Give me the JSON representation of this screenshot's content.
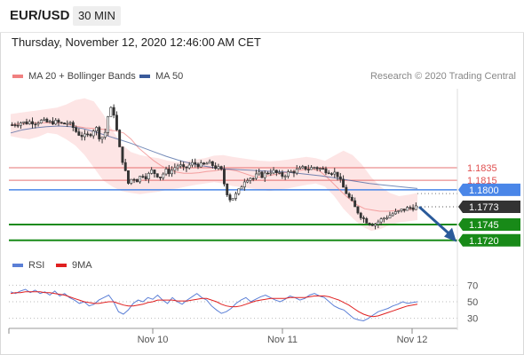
{
  "header": {
    "symbol": "EUR/USD",
    "timeframe": "30 MIN"
  },
  "datetime": "Thursday, November 12, 2020 12:46:00 AM CET",
  "legend": {
    "ma20": {
      "label": "MA 20 + Bollinger Bands",
      "color": "#f08080"
    },
    "ma50": {
      "label": "MA 50",
      "color": "#3a5a9a"
    }
  },
  "credit": "Research © 2020 Trading Central",
  "rsi_legend": {
    "rsi": {
      "label": "RSI",
      "color": "#5b7fd6"
    },
    "ma9": {
      "label": "9MA",
      "color": "#e02020"
    }
  },
  "chart_data": {
    "type": "candlestick",
    "x_ticks": [
      "Nov 10",
      "Nov 11",
      "Nov 12"
    ],
    "price_levels": [
      {
        "value": 1.1835,
        "label": "1.1835",
        "kind": "resistance",
        "color": "#e05050"
      },
      {
        "value": 1.1815,
        "label": "1.1815",
        "kind": "resistance",
        "color": "#e05050"
      },
      {
        "value": 1.18,
        "label": "1.1800",
        "kind": "pivot",
        "color": "#4a86e8"
      },
      {
        "value": 1.1773,
        "label": "1.1773",
        "kind": "last-price",
        "color": "#333333"
      },
      {
        "value": 1.1745,
        "label": "1.1745",
        "kind": "support",
        "color": "#188a18"
      },
      {
        "value": 1.172,
        "label": "1.1720",
        "kind": "support",
        "color": "#188a18"
      }
    ],
    "price_range": [
      1.17,
      1.196
    ],
    "close_path": [
      1.1903,
      1.1905,
      1.1907,
      1.1906,
      1.1908,
      1.1907,
      1.1909,
      1.1908,
      1.1906,
      1.1908,
      1.1906,
      1.1904,
      1.1906,
      1.19,
      1.189,
      1.1886,
      1.1884,
      1.189,
      1.19,
      1.188,
      1.189,
      1.193,
      1.192,
      1.187,
      1.184,
      1.181,
      1.182,
      1.1815,
      1.1825,
      1.182,
      1.183,
      1.1825,
      1.182,
      1.183,
      1.1828,
      1.1835,
      1.184,
      1.1832,
      1.1838,
      1.1842,
      1.184,
      1.1838,
      1.1842,
      1.184,
      1.1835,
      1.1832,
      1.18,
      1.1785,
      1.179,
      1.18,
      1.1815,
      1.182,
      1.1818,
      1.1825,
      1.1822,
      1.1828,
      1.183,
      1.1826,
      1.1822,
      1.1825,
      1.1828,
      1.183,
      1.1832,
      1.1835,
      1.1833,
      1.1836,
      1.1834,
      1.1832,
      1.183,
      1.1828,
      1.1825,
      1.1808,
      1.1795,
      1.1782,
      1.177,
      1.176,
      1.1752,
      1.1748,
      1.1745,
      1.175,
      1.1755,
      1.1758,
      1.1762,
      1.1764,
      1.1768,
      1.177,
      1.1772,
      1.1773
    ],
    "ma20_path": [
      1.1903,
      1.1904,
      1.1905,
      1.1906,
      1.1906,
      1.1906,
      1.1906,
      1.1905,
      1.1903,
      1.19,
      1.1898,
      1.1897,
      1.1896,
      1.1895,
      1.1893,
      1.189,
      1.188,
      1.1866,
      1.1856,
      1.1846,
      1.1838,
      1.1832,
      1.1828,
      1.1826,
      1.1826,
      1.1827,
      1.1829,
      1.183,
      1.1832,
      1.1832,
      1.183,
      1.1826,
      1.1822,
      1.182,
      1.1822,
      1.1824,
      1.1826,
      1.1828,
      1.183,
      1.1832,
      1.1833,
      1.183,
      1.182,
      1.1808,
      1.1796,
      1.1785,
      1.1776,
      1.177,
      1.1768,
      1.1766,
      1.1766,
      1.1767,
      1.1768,
      1.1769,
      1.177
    ],
    "ma50_path": [
      1.189,
      1.1895,
      1.1898,
      1.19,
      1.1901,
      1.19,
      1.1897,
      1.1892,
      1.1886,
      1.188,
      1.1874,
      1.1867,
      1.186,
      1.1853,
      1.1847,
      1.1842,
      1.1838,
      1.1835,
      1.1833,
      1.1832,
      1.1831,
      1.183,
      1.1829,
      1.1828,
      1.1826,
      1.1824,
      1.1822,
      1.1819,
      1.1816,
      1.1813,
      1.181,
      1.1808,
      1.1806,
      1.1804,
      1.1802
    ],
    "bb_upper": [
      1.192,
      1.1922,
      1.1924,
      1.1926,
      1.1928,
      1.193,
      1.1935,
      1.1942,
      1.1945,
      1.194,
      1.192,
      1.1895,
      1.1872,
      1.186,
      1.1855,
      1.1852,
      1.185,
      1.1846,
      1.1844,
      1.1846,
      1.1848,
      1.185,
      1.1854,
      1.1855,
      1.1852,
      1.185,
      1.1848,
      1.1846,
      1.1845,
      1.1846,
      1.1848,
      1.185,
      1.1852,
      1.185,
      1.1846,
      1.1854,
      1.1862,
      1.1855,
      1.184,
      1.182,
      1.1805,
      1.1795,
      1.179,
      1.1792,
      1.1795
    ],
    "bb_lower": [
      1.1885,
      1.1882,
      1.188,
      1.1884,
      1.189,
      1.1888,
      1.188,
      1.187,
      1.1855,
      1.1835,
      1.1815,
      1.1805,
      1.1798,
      1.1795,
      1.1793,
      1.1795,
      1.1797,
      1.18,
      1.1802,
      1.1805,
      1.1808,
      1.181,
      1.1812,
      1.181,
      1.1806,
      1.1804,
      1.1802,
      1.18,
      1.1798,
      1.18,
      1.1802,
      1.1805,
      1.1808,
      1.181,
      1.1805,
      1.179,
      1.177,
      1.1755,
      1.1742,
      1.1735,
      1.1738,
      1.1744,
      1.1748,
      1.175,
      1.1752
    ],
    "rsi": {
      "ticks": [
        70,
        50,
        30
      ],
      "range": [
        20,
        80
      ],
      "rsi_path": [
        62,
        60,
        63,
        65,
        61,
        64,
        60,
        62,
        58,
        63,
        57,
        60,
        55,
        52,
        48,
        50,
        45,
        47,
        52,
        55,
        58,
        50,
        38,
        35,
        40,
        48,
        52,
        50,
        55,
        53,
        58,
        52,
        48,
        55,
        50,
        47,
        52,
        56,
        60,
        55,
        52,
        45,
        40,
        36,
        38,
        42,
        48,
        52,
        55,
        50,
        53,
        56,
        58,
        55,
        52,
        50,
        53,
        57,
        55,
        52,
        54,
        58,
        60,
        57,
        55,
        50,
        45,
        42,
        40,
        35,
        30,
        28,
        27,
        30,
        34,
        38,
        40,
        42,
        45,
        47,
        50,
        48,
        49,
        50
      ],
      "ma9_path": [
        60,
        61,
        61,
        62,
        62,
        62,
        62,
        61,
        61,
        60,
        59,
        58,
        56,
        54,
        52,
        50,
        49,
        48,
        48,
        49,
        50,
        50,
        48,
        46,
        45,
        45,
        46,
        47,
        49,
        50,
        52,
        52,
        52,
        52,
        51,
        51,
        51,
        52,
        53,
        54,
        54,
        52,
        50,
        47,
        45,
        44,
        44,
        45,
        47,
        49,
        51,
        52,
        53,
        54,
        54,
        54,
        54,
        55,
        55,
        55,
        55,
        56,
        57,
        57,
        57,
        56,
        54,
        52,
        49,
        46,
        42,
        38,
        35,
        33,
        32,
        33,
        35,
        37,
        39,
        41,
        43,
        45,
        46,
        47
      ]
    }
  }
}
